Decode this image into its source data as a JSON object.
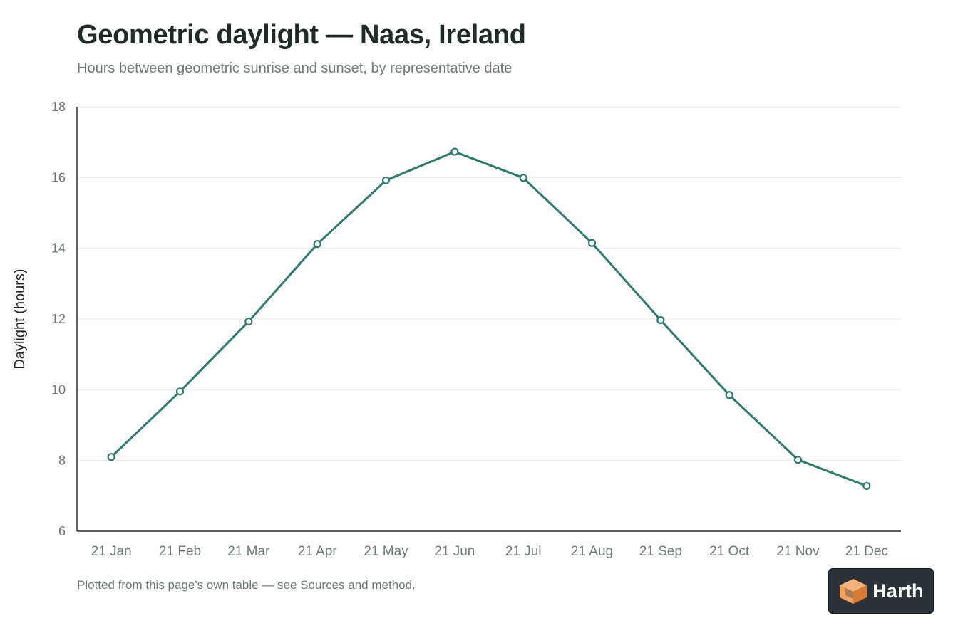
{
  "header": {
    "title": "Geometric daylight — Naas, Ireland",
    "subtitle": "Hours between geometric sunrise and sunset, by representative date"
  },
  "footer": {
    "note": "Plotted from this page's own table — see Sources and method."
  },
  "brand": {
    "name": "Harth",
    "logo_icon": "orange-cube-icon",
    "colors": {
      "background": "#2b3338",
      "cube_light": "#f4a261",
      "cube_dark": "#d97a34"
    }
  },
  "chart_data": {
    "type": "line",
    "title": "Geometric daylight — Naas, Ireland",
    "subtitle": "Hours between geometric sunrise and sunset, by representative date",
    "xlabel": "",
    "ylabel": "Daylight (hours)",
    "categories": [
      "21 Jan",
      "21 Feb",
      "21 Mar",
      "21 Apr",
      "21 May",
      "21 Jun",
      "21 Jul",
      "21 Aug",
      "21 Sep",
      "21 Oct",
      "21 Nov",
      "21 Dec"
    ],
    "series": [
      {
        "values": [
          8.1,
          9.95,
          11.93,
          14.12,
          15.92,
          16.73,
          15.99,
          14.15,
          11.97,
          9.85,
          8.02,
          7.28
        ]
      }
    ],
    "ylim": [
      6,
      18
    ],
    "yticks": [
      6,
      8,
      10,
      12,
      14,
      16,
      18
    ],
    "grid": true,
    "legend": "none",
    "colors": {
      "line": "#2e7a6e",
      "grid": "#e6e9e8",
      "axis": "#2b2b2b",
      "tick_text": "#6d7a77"
    }
  }
}
